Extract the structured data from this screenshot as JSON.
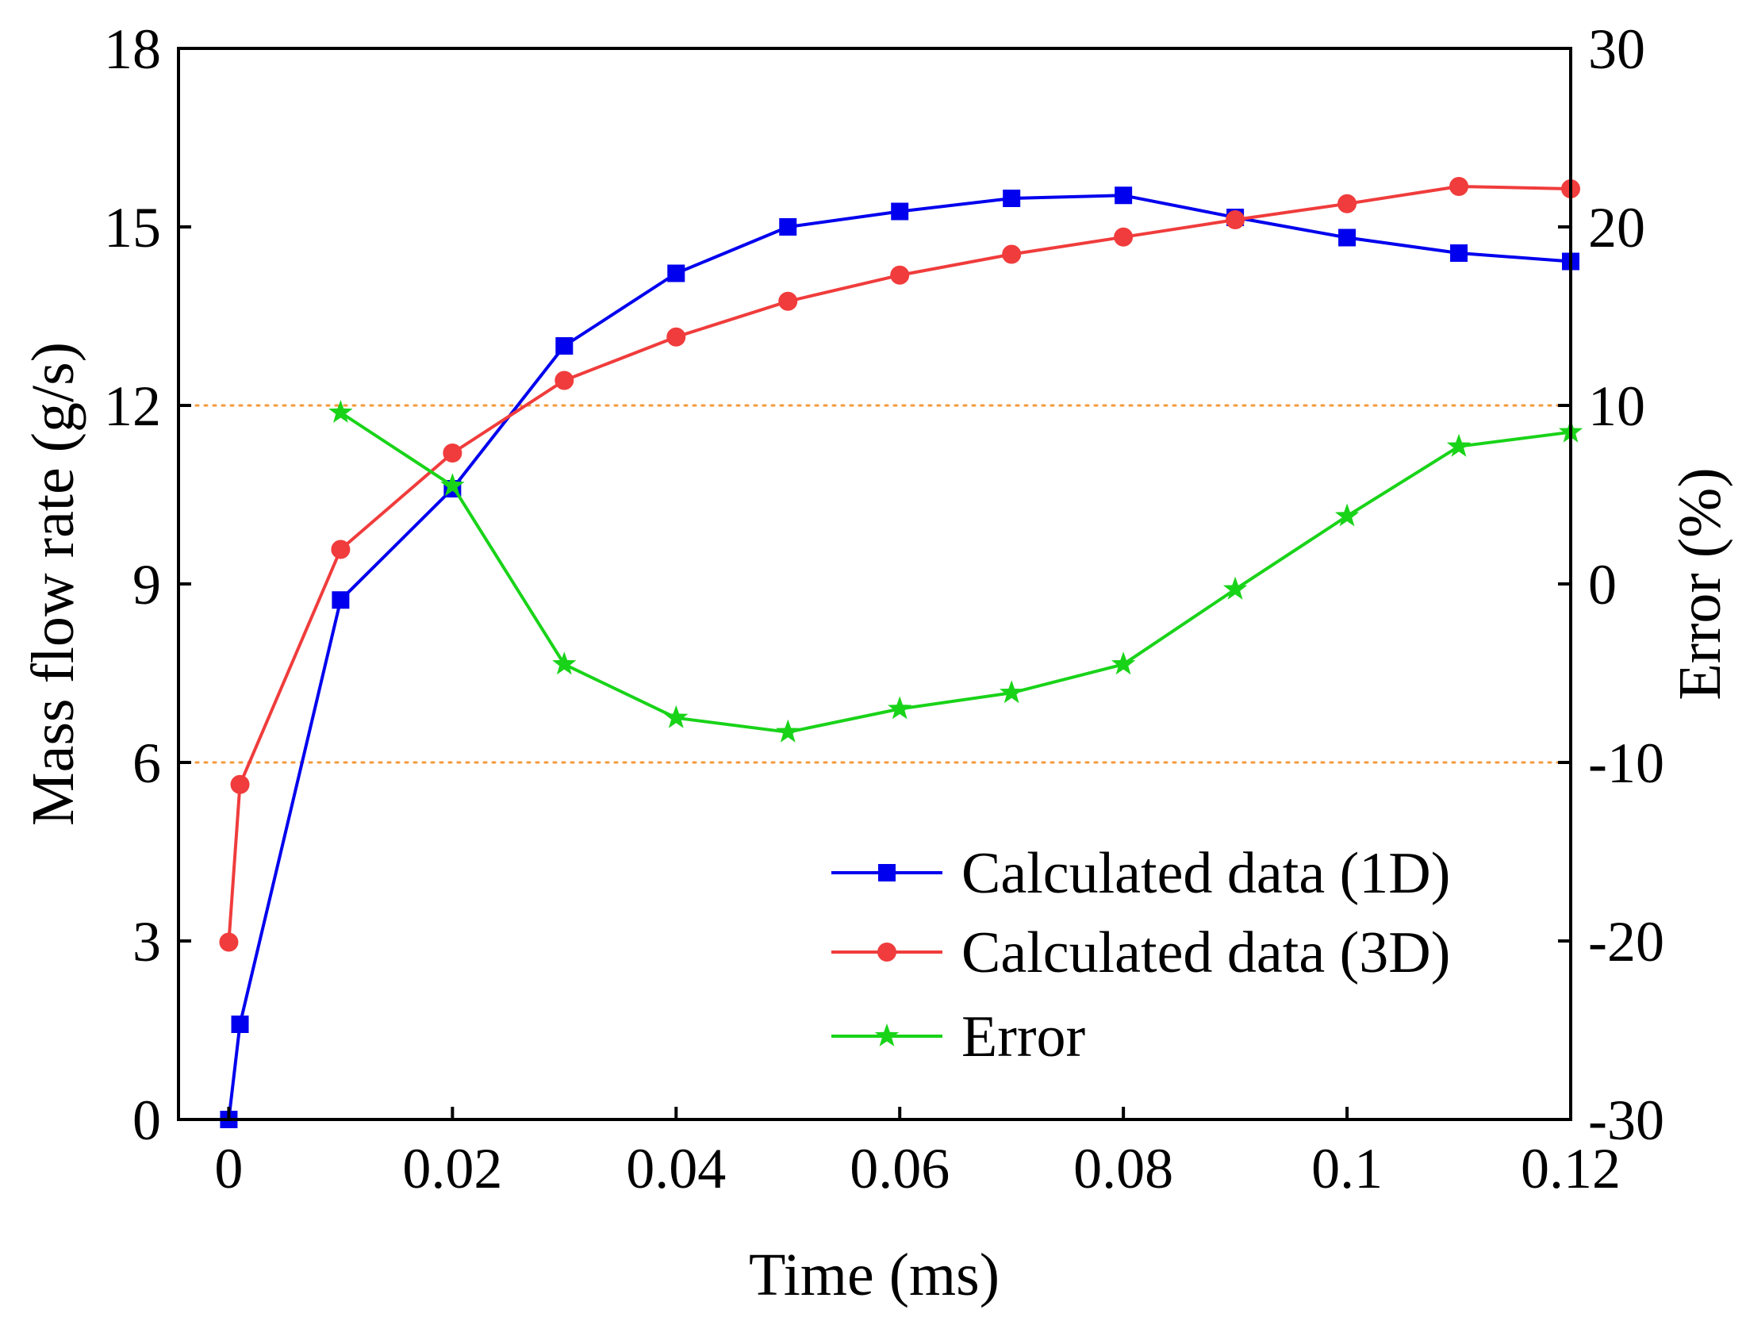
{
  "chart_data": {
    "type": "line",
    "title": "",
    "xlabel": "Time (ms)",
    "ylabel": "Mass flow rate (g/s)",
    "y2label": "Error (%)",
    "xlim": [
      -0.0045,
      0.12
    ],
    "ylim": [
      0,
      18
    ],
    "y2lim": [
      -30,
      30
    ],
    "xticks": [
      0,
      0.02,
      0.04,
      0.06,
      0.08,
      0.1,
      0.12
    ],
    "xtick_labels": [
      "0",
      "0.02",
      "0.04",
      "0.06",
      "0.08",
      "0.1",
      "0.12"
    ],
    "yticks": [
      0,
      3,
      6,
      9,
      12,
      15,
      18
    ],
    "ytick_labels": [
      "0",
      "3",
      "6",
      "9",
      "12",
      "15",
      "18"
    ],
    "y2ticks": [
      -30,
      -20,
      -10,
      0,
      10,
      20,
      30
    ],
    "y2tick_labels": [
      "-30",
      "-20",
      "-10",
      "0",
      "10",
      "20",
      "30"
    ],
    "reference_lines": [
      {
        "axis": "y2",
        "value": 10,
        "style": "dotted",
        "color": "#f59a3c"
      },
      {
        "axis": "y2",
        "value": -10,
        "style": "dotted",
        "color": "#f59a3c"
      }
    ],
    "grid": false,
    "legend_position": "bottom-right",
    "series": [
      {
        "name": "Calculated data (1D)",
        "axis": "y",
        "color": "#0000ee",
        "marker": "square",
        "x": [
          0,
          0.001,
          0.01,
          0.02,
          0.03,
          0.04,
          0.05,
          0.06,
          0.07,
          0.08,
          0.09,
          0.1,
          0.11,
          0.12
        ],
        "values": [
          0.0,
          1.6,
          8.73,
          10.6,
          13.0,
          14.22,
          15.0,
          15.26,
          15.48,
          15.53,
          15.16,
          14.82,
          14.56,
          14.42
        ]
      },
      {
        "name": "Calculated data (3D)",
        "axis": "y",
        "color": "#f03c3c",
        "marker": "circle",
        "x": [
          0,
          0.001,
          0.01,
          0.02,
          0.03,
          0.04,
          0.05,
          0.06,
          0.07,
          0.08,
          0.09,
          0.1,
          0.11,
          0.12
        ],
        "values": [
          2.98,
          5.63,
          9.58,
          11.2,
          12.42,
          13.15,
          13.75,
          14.19,
          14.54,
          14.83,
          15.12,
          15.39,
          15.68,
          15.64
        ]
      },
      {
        "name": "Error",
        "axis": "y2",
        "color": "#19d319",
        "marker": "star",
        "x": [
          0.01,
          0.02,
          0.03,
          0.04,
          0.05,
          0.06,
          0.07,
          0.08,
          0.09,
          0.1,
          0.11,
          0.12
        ],
        "values": [
          9.6,
          5.5,
          -4.5,
          -7.5,
          -8.3,
          -7.0,
          -6.1,
          -4.5,
          -0.3,
          3.8,
          7.7,
          8.5
        ]
      }
    ]
  }
}
